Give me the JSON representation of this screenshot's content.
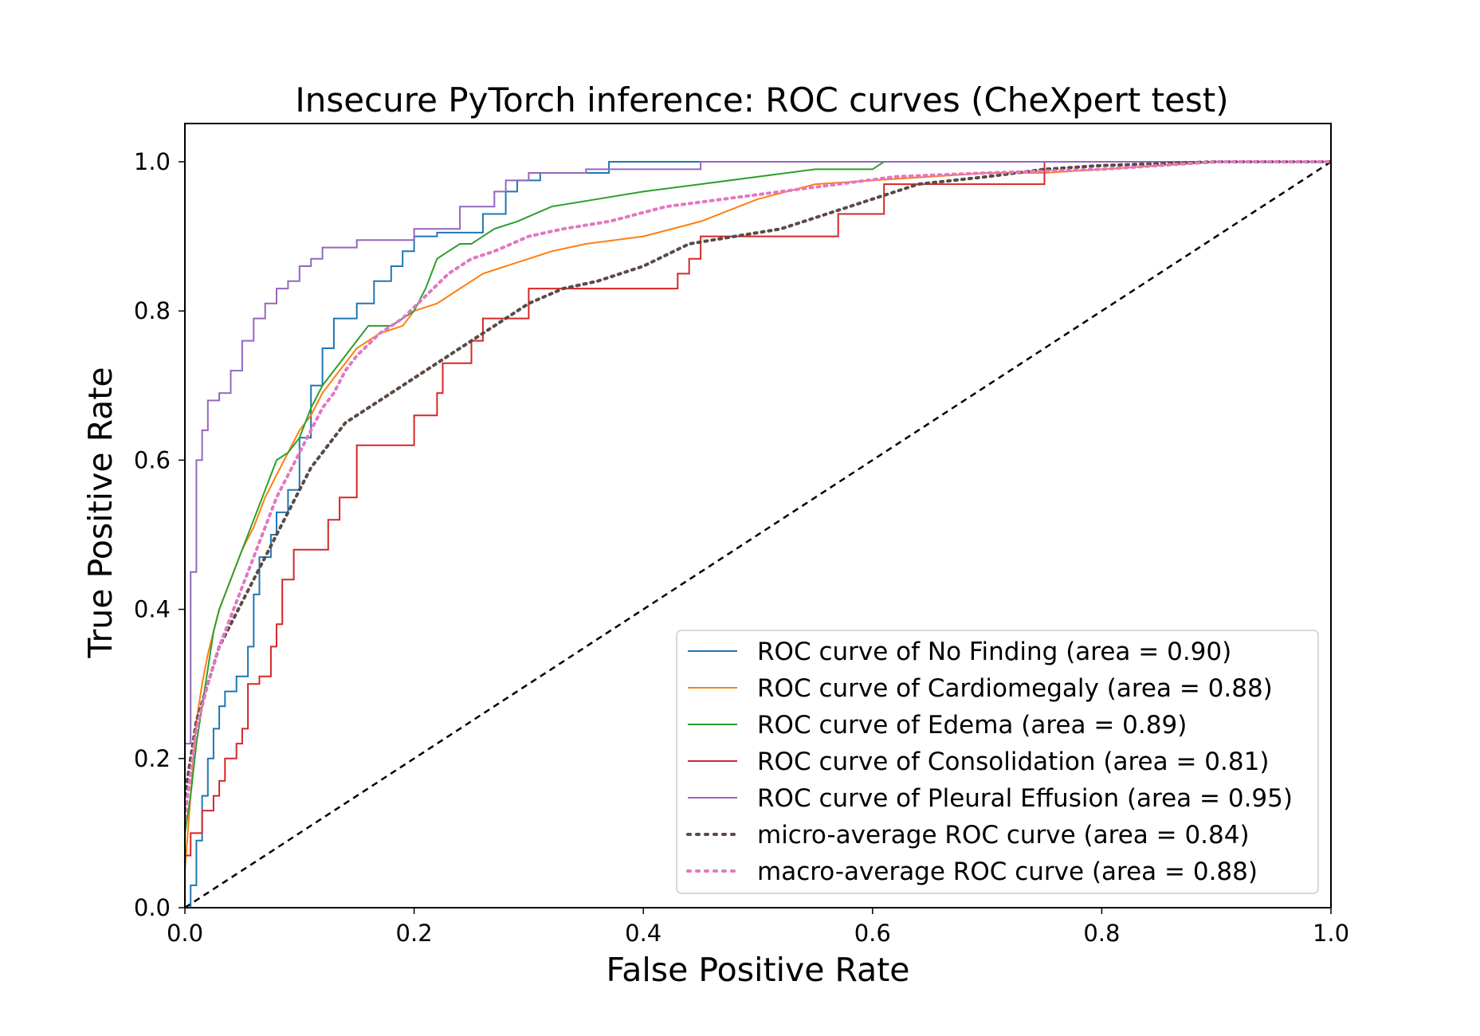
{
  "chart_data": {
    "type": "line",
    "title": "Insecure PyTorch inference: ROC curves (CheXpert test)",
    "xlabel": "False Positive Rate",
    "ylabel": "True Positive Rate",
    "xlim": [
      0.0,
      1.0
    ],
    "ylim": [
      0.0,
      1.0
    ],
    "xticks": [
      "0.0",
      "0.2",
      "0.4",
      "0.6",
      "0.8",
      "1.0"
    ],
    "yticks": [
      "0.0",
      "0.2",
      "0.4",
      "0.6",
      "0.8",
      "1.0"
    ],
    "xtick_values": [
      0.0,
      0.2,
      0.4,
      0.6,
      0.8,
      1.0
    ],
    "ytick_values": [
      0.0,
      0.2,
      0.4,
      0.6,
      0.8,
      1.0
    ],
    "grid": false,
    "legend_position": "lower-right",
    "chance_line": {
      "x": [
        0.0,
        1.0
      ],
      "y": [
        0.0,
        1.0
      ],
      "color": "#000000",
      "style": "dashed"
    },
    "series": [
      {
        "name": "ROC curve of No Finding (area = 0.90)",
        "color": "#1f77b4",
        "style": "solid",
        "x": [
          0.0,
          0.005,
          0.005,
          0.01,
          0.01,
          0.015,
          0.015,
          0.02,
          0.02,
          0.025,
          0.025,
          0.03,
          0.03,
          0.035,
          0.035,
          0.045,
          0.045,
          0.055,
          0.055,
          0.06,
          0.06,
          0.065,
          0.065,
          0.075,
          0.075,
          0.08,
          0.08,
          0.09,
          0.09,
          0.1,
          0.1,
          0.11,
          0.11,
          0.12,
          0.12,
          0.13,
          0.13,
          0.15,
          0.15,
          0.165,
          0.165,
          0.18,
          0.18,
          0.19,
          0.19,
          0.2,
          0.2,
          0.22,
          0.22,
          0.26,
          0.26,
          0.28,
          0.28,
          0.29,
          0.29,
          0.31,
          0.31,
          0.37,
          0.37,
          0.45,
          0.45,
          0.5,
          0.5,
          0.6,
          0.6,
          1.0
        ],
        "y": [
          0.0,
          0.0,
          0.03,
          0.03,
          0.09,
          0.09,
          0.15,
          0.15,
          0.2,
          0.2,
          0.24,
          0.24,
          0.27,
          0.27,
          0.29,
          0.29,
          0.31,
          0.31,
          0.35,
          0.35,
          0.42,
          0.42,
          0.47,
          0.47,
          0.5,
          0.5,
          0.53,
          0.53,
          0.56,
          0.56,
          0.63,
          0.63,
          0.7,
          0.7,
          0.75,
          0.75,
          0.79,
          0.79,
          0.81,
          0.81,
          0.84,
          0.84,
          0.86,
          0.86,
          0.88,
          0.88,
          0.9,
          0.9,
          0.905,
          0.905,
          0.93,
          0.93,
          0.96,
          0.96,
          0.975,
          0.975,
          0.985,
          0.985,
          1.0,
          1.0,
          1.0,
          1.0,
          1.0,
          1.0,
          1.0,
          1.0
        ]
      },
      {
        "name": "ROC curve of Cardiomegaly (area = 0.88)",
        "color": "#ff7f0e",
        "style": "solid",
        "x": [
          0.0,
          0.005,
          0.01,
          0.015,
          0.02,
          0.025,
          0.03,
          0.04,
          0.05,
          0.06,
          0.07,
          0.08,
          0.09,
          0.1,
          0.11,
          0.12,
          0.13,
          0.14,
          0.15,
          0.17,
          0.19,
          0.2,
          0.22,
          0.24,
          0.25,
          0.26,
          0.28,
          0.3,
          0.32,
          0.35,
          0.4,
          0.45,
          0.5,
          0.55,
          0.6,
          0.65,
          0.7,
          0.75,
          0.8,
          0.85,
          0.9,
          1.0
        ],
        "y": [
          0.05,
          0.15,
          0.25,
          0.3,
          0.34,
          0.37,
          0.4,
          0.44,
          0.48,
          0.51,
          0.55,
          0.58,
          0.61,
          0.64,
          0.66,
          0.69,
          0.71,
          0.73,
          0.75,
          0.77,
          0.78,
          0.8,
          0.81,
          0.83,
          0.84,
          0.85,
          0.86,
          0.87,
          0.88,
          0.89,
          0.9,
          0.92,
          0.95,
          0.97,
          0.975,
          0.98,
          0.985,
          0.985,
          0.99,
          0.995,
          1.0,
          1.0
        ]
      },
      {
        "name": "ROC curve of Edema (area = 0.89)",
        "color": "#2ca02c",
        "style": "solid",
        "x": [
          0.0,
          0.005,
          0.01,
          0.015,
          0.02,
          0.025,
          0.03,
          0.04,
          0.05,
          0.06,
          0.07,
          0.08,
          0.09,
          0.1,
          0.11,
          0.12,
          0.13,
          0.14,
          0.15,
          0.16,
          0.17,
          0.18,
          0.19,
          0.2,
          0.21,
          0.22,
          0.23,
          0.24,
          0.25,
          0.26,
          0.27,
          0.29,
          0.32,
          0.36,
          0.4,
          0.45,
          0.5,
          0.55,
          0.6,
          0.61,
          0.7,
          0.8,
          1.0
        ],
        "y": [
          0.1,
          0.15,
          0.22,
          0.27,
          0.32,
          0.37,
          0.4,
          0.44,
          0.48,
          0.52,
          0.56,
          0.6,
          0.61,
          0.63,
          0.67,
          0.7,
          0.72,
          0.74,
          0.76,
          0.78,
          0.78,
          0.78,
          0.79,
          0.8,
          0.83,
          0.87,
          0.88,
          0.89,
          0.89,
          0.9,
          0.91,
          0.92,
          0.94,
          0.95,
          0.96,
          0.97,
          0.98,
          0.99,
          0.99,
          1.0,
          1.0,
          1.0,
          1.0
        ]
      },
      {
        "name": "ROC curve of Consolidation (area = 0.81)",
        "color": "#d62728",
        "style": "solid",
        "x": [
          0.0,
          0.0,
          0.005,
          0.005,
          0.015,
          0.015,
          0.025,
          0.025,
          0.03,
          0.03,
          0.035,
          0.035,
          0.045,
          0.045,
          0.05,
          0.05,
          0.055,
          0.055,
          0.065,
          0.065,
          0.075,
          0.075,
          0.08,
          0.08,
          0.085,
          0.085,
          0.095,
          0.095,
          0.125,
          0.125,
          0.135,
          0.135,
          0.15,
          0.15,
          0.2,
          0.2,
          0.22,
          0.22,
          0.225,
          0.225,
          0.25,
          0.25,
          0.26,
          0.26,
          0.3,
          0.3,
          0.43,
          0.43,
          0.44,
          0.44,
          0.45,
          0.45,
          0.57,
          0.57,
          0.61,
          0.61,
          0.75,
          0.75,
          1.0
        ],
        "y": [
          0.0,
          0.07,
          0.07,
          0.1,
          0.1,
          0.13,
          0.13,
          0.15,
          0.15,
          0.17,
          0.17,
          0.2,
          0.2,
          0.22,
          0.22,
          0.24,
          0.24,
          0.3,
          0.3,
          0.31,
          0.31,
          0.35,
          0.35,
          0.38,
          0.38,
          0.44,
          0.44,
          0.48,
          0.48,
          0.52,
          0.52,
          0.55,
          0.55,
          0.62,
          0.62,
          0.66,
          0.66,
          0.69,
          0.69,
          0.73,
          0.73,
          0.76,
          0.76,
          0.79,
          0.79,
          0.83,
          0.83,
          0.85,
          0.85,
          0.87,
          0.87,
          0.9,
          0.9,
          0.93,
          0.93,
          0.97,
          0.97,
          1.0,
          1.0
        ]
      },
      {
        "name": "ROC curve of Pleural Effusion (area = 0.95)",
        "color": "#9467bd",
        "style": "solid",
        "x": [
          0.0,
          0.0,
          0.005,
          0.005,
          0.01,
          0.01,
          0.015,
          0.015,
          0.02,
          0.02,
          0.03,
          0.03,
          0.04,
          0.04,
          0.05,
          0.05,
          0.06,
          0.06,
          0.07,
          0.07,
          0.08,
          0.08,
          0.09,
          0.09,
          0.1,
          0.1,
          0.11,
          0.11,
          0.12,
          0.12,
          0.15,
          0.15,
          0.2,
          0.2,
          0.24,
          0.24,
          0.27,
          0.27,
          0.28,
          0.28,
          0.3,
          0.3,
          0.35,
          0.35,
          0.45,
          0.45,
          0.55,
          1.0
        ],
        "y": [
          0.0,
          0.22,
          0.22,
          0.45,
          0.45,
          0.6,
          0.6,
          0.64,
          0.64,
          0.68,
          0.68,
          0.69,
          0.69,
          0.72,
          0.72,
          0.76,
          0.76,
          0.79,
          0.79,
          0.81,
          0.81,
          0.83,
          0.83,
          0.84,
          0.84,
          0.86,
          0.86,
          0.87,
          0.87,
          0.885,
          0.885,
          0.895,
          0.895,
          0.91,
          0.91,
          0.94,
          0.94,
          0.96,
          0.96,
          0.975,
          0.975,
          0.985,
          0.985,
          0.99,
          0.99,
          1.0,
          1.0,
          1.0
        ]
      },
      {
        "name": "micro-average ROC curve (area = 0.84)",
        "color": "#5b4a45",
        "style": "dotted",
        "x": [
          0.0,
          0.005,
          0.01,
          0.02,
          0.03,
          0.04,
          0.05,
          0.06,
          0.07,
          0.08,
          0.09,
          0.1,
          0.11,
          0.12,
          0.13,
          0.14,
          0.15,
          0.17,
          0.19,
          0.2,
          0.22,
          0.25,
          0.28,
          0.3,
          0.33,
          0.36,
          0.4,
          0.44,
          0.48,
          0.52,
          0.56,
          0.6,
          0.64,
          0.7,
          0.75,
          0.8,
          0.9,
          1.0
        ],
        "y": [
          0.15,
          0.2,
          0.25,
          0.3,
          0.35,
          0.38,
          0.41,
          0.44,
          0.47,
          0.5,
          0.53,
          0.56,
          0.59,
          0.61,
          0.63,
          0.65,
          0.66,
          0.68,
          0.7,
          0.71,
          0.73,
          0.76,
          0.79,
          0.81,
          0.83,
          0.84,
          0.86,
          0.89,
          0.9,
          0.91,
          0.93,
          0.95,
          0.97,
          0.98,
          0.99,
          0.995,
          1.0,
          1.0
        ]
      },
      {
        "name": "macro-average ROC curve (area = 0.88)",
        "color": "#e377c2",
        "style": "dotted",
        "x": [
          0.0,
          0.005,
          0.01,
          0.02,
          0.03,
          0.04,
          0.05,
          0.06,
          0.07,
          0.08,
          0.09,
          0.1,
          0.11,
          0.12,
          0.13,
          0.14,
          0.15,
          0.17,
          0.19,
          0.21,
          0.23,
          0.25,
          0.27,
          0.3,
          0.33,
          0.37,
          0.42,
          0.47,
          0.52,
          0.57,
          0.62,
          0.7,
          0.8,
          0.9,
          1.0
        ],
        "y": [
          0.12,
          0.18,
          0.24,
          0.3,
          0.35,
          0.39,
          0.43,
          0.47,
          0.51,
          0.55,
          0.58,
          0.61,
          0.64,
          0.67,
          0.69,
          0.72,
          0.74,
          0.77,
          0.79,
          0.82,
          0.85,
          0.87,
          0.88,
          0.9,
          0.91,
          0.92,
          0.94,
          0.95,
          0.96,
          0.97,
          0.98,
          0.985,
          0.99,
          1.0,
          1.0
        ]
      }
    ]
  }
}
